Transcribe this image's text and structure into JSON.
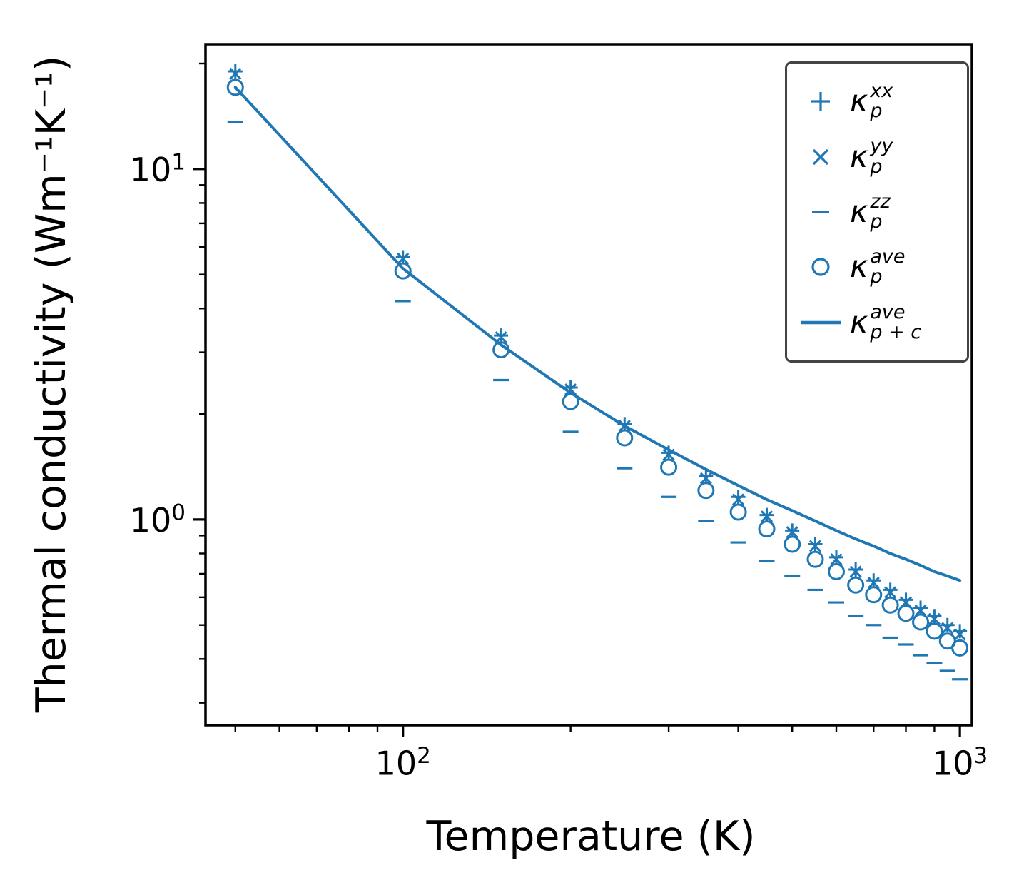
{
  "figure": {
    "background": "#ffffff"
  },
  "chart_data": {
    "type": "scatter",
    "title": "",
    "xlabel": "Temperature (K)",
    "ylabel": "Thermal conductivity (Wm⁻¹K⁻¹)",
    "xscale": "log",
    "yscale": "log",
    "xlim": [
      44.2,
      1051
    ],
    "ylim": [
      0.259,
      22.7
    ],
    "grid": false,
    "legend_position": "upper right",
    "color": "#1f77b4",
    "x": [
      50,
      100,
      150,
      200,
      250,
      300,
      350,
      400,
      450,
      500,
      550,
      600,
      650,
      700,
      750,
      800,
      850,
      900,
      950,
      1000
    ],
    "series": [
      {
        "name": "kappa-p-xx",
        "marker": "plus",
        "values": [
          19.0,
          5.6,
          3.35,
          2.38,
          1.87,
          1.55,
          1.33,
          1.16,
          1.03,
          0.93,
          0.85,
          0.78,
          0.72,
          0.67,
          0.63,
          0.59,
          0.56,
          0.53,
          0.5,
          0.48
        ]
      },
      {
        "name": "kappa-p-yy",
        "marker": "x",
        "values": [
          18.7,
          5.55,
          3.31,
          2.35,
          1.85,
          1.53,
          1.31,
          1.14,
          1.02,
          0.92,
          0.84,
          0.77,
          0.71,
          0.66,
          0.62,
          0.58,
          0.55,
          0.52,
          0.49,
          0.47
        ]
      },
      {
        "name": "kappa-p-zz",
        "marker": "hline",
        "values": [
          13.6,
          4.2,
          2.5,
          1.78,
          1.4,
          1.16,
          0.99,
          0.86,
          0.76,
          0.69,
          0.63,
          0.58,
          0.53,
          0.5,
          0.46,
          0.44,
          0.41,
          0.39,
          0.37,
          0.35
        ]
      },
      {
        "name": "kappa-p-ave",
        "marker": "circle",
        "values": [
          17.1,
          5.12,
          3.05,
          2.17,
          1.71,
          1.41,
          1.21,
          1.05,
          0.94,
          0.85,
          0.77,
          0.71,
          0.65,
          0.61,
          0.57,
          0.54,
          0.51,
          0.48,
          0.45,
          0.43
        ]
      },
      {
        "name": "kappa-p-plus-c-ave",
        "marker": "line",
        "values": [
          17.1,
          5.2,
          3.15,
          2.3,
          1.85,
          1.58,
          1.39,
          1.25,
          1.14,
          1.06,
          0.99,
          0.93,
          0.88,
          0.84,
          0.8,
          0.77,
          0.74,
          0.71,
          0.69,
          0.67
        ]
      }
    ],
    "xticks": [
      {
        "value": 100,
        "base": "10",
        "exp": "2"
      },
      {
        "value": 1000,
        "base": "10",
        "exp": "3"
      }
    ],
    "yticks": [
      {
        "value": 10,
        "base": "10",
        "exp": "1"
      },
      {
        "value": 1,
        "base": "10",
        "exp": "0"
      }
    ]
  },
  "legend": {
    "symbol": "κ",
    "items": [
      {
        "marker": "plus",
        "sup": "xx",
        "sub": "p"
      },
      {
        "marker": "x",
        "sup": "yy",
        "sub": "p"
      },
      {
        "marker": "hline",
        "sup": "zz",
        "sub": "p"
      },
      {
        "marker": "circle",
        "sup": "ave",
        "sub": "p"
      },
      {
        "marker": "line",
        "sup": "ave",
        "sub": "p + c"
      }
    ]
  }
}
